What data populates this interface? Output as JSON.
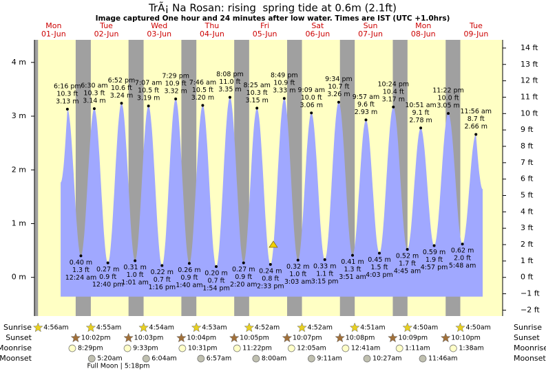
{
  "chart_data": {
    "type": "tide",
    "title": "TrÃ¡ Na Rosan: rising  spring tide at 0.6m (2.1ft)",
    "subtitle": "Image captured One hour and 24 minutes after low water. Times are IST (UTC +1.0hrs)",
    "ylim": [
      -0.72,
      4.42
    ],
    "yticks": [
      {
        "value": 0,
        "label": "0 m"
      },
      {
        "value": 1,
        "label": "1 m"
      },
      {
        "value": 2,
        "label": "2 m"
      },
      {
        "value": 3,
        "label": "3 m"
      },
      {
        "value": 4,
        "label": "4 m"
      }
    ],
    "y2lim": [
      -2.36,
      14.5
    ],
    "y2ticks": [
      {
        "value": -2,
        "label": "−2 ft"
      },
      {
        "value": -1,
        "label": "−1 ft"
      },
      {
        "value": 0,
        "label": "0 ft"
      },
      {
        "value": 1,
        "label": "1 ft"
      },
      {
        "value": 2,
        "label": "2 ft"
      },
      {
        "value": 3,
        "label": "3 ft"
      },
      {
        "value": 4,
        "label": "4 ft"
      },
      {
        "value": 5,
        "label": "5 ft"
      },
      {
        "value": 6,
        "label": "6 ft"
      },
      {
        "value": 7,
        "label": "7 ft"
      },
      {
        "value": 8,
        "label": "8 ft"
      },
      {
        "value": 9,
        "label": "9 ft"
      },
      {
        "value": 10,
        "label": "10 ft"
      },
      {
        "value": 11,
        "label": "11 ft"
      },
      {
        "value": 12,
        "label": "12 ft"
      },
      {
        "value": 13,
        "label": "13 ft"
      },
      {
        "value": 14,
        "label": "14 ft"
      }
    ],
    "color": "#a0a8ff",
    "row_labels": [
      "Sunrise",
      "Sunset",
      "Moonrise",
      "Moonset"
    ],
    "full_moon": "Full Moon | 5:18pm",
    "days": [
      {
        "name": "Mon",
        "date": "01-Jun",
        "sunrise": "4:56am",
        "sunset": "10:02pm",
        "moonrise": "8:29pm",
        "tides": [
          {
            "time": "6:16 pm",
            "ft": "10.3 ft",
            "value": 3.13,
            "value_label": "3.13 m"
          }
        ]
      },
      {
        "name": "Tue",
        "date": "02-Jun",
        "sunrise": "4:55am",
        "sunset": "10:03pm",
        "moonrise": "9:33pm",
        "moonset": "5:20am",
        "tides": [
          {
            "time": "12:24 am",
            "ft": "1.3 ft",
            "value": 0.4,
            "value_label": "0.40 m"
          },
          {
            "time": "6:30 am",
            "ft": "10.3 ft",
            "value": 3.14,
            "value_label": "3.14 m"
          },
          {
            "time": "12:40 pm",
            "ft": "0.9 ft",
            "value": 0.27,
            "value_label": "0.27 m"
          },
          {
            "time": "6:52 pm",
            "ft": "10.6 ft",
            "value": 3.24,
            "value_label": "3.24 m"
          }
        ]
      },
      {
        "name": "Wed",
        "date": "03-Jun",
        "sunrise": "4:54am",
        "sunset": "10:04pm",
        "moonrise": "10:31pm",
        "moonset": "6:04am",
        "tides": [
          {
            "time": "1:01 am",
            "ft": "1.0 ft",
            "value": 0.31,
            "value_label": "0.31 m"
          },
          {
            "time": "7:07 am",
            "ft": "10.5 ft",
            "value": 3.19,
            "value_label": "3.19 m"
          },
          {
            "time": "1:16 pm",
            "ft": "0.7 ft",
            "value": 0.22,
            "value_label": "0.22 m"
          },
          {
            "time": "7:29 pm",
            "ft": "10.9 ft",
            "value": 3.32,
            "value_label": "3.32 m"
          }
        ]
      },
      {
        "name": "Thu",
        "date": "04-Jun",
        "sunrise": "4:53am",
        "sunset": "10:05pm",
        "moonrise": "11:22pm",
        "moonset": "6:57am",
        "tides": [
          {
            "time": "1:40 am",
            "ft": "0.9 ft",
            "value": 0.26,
            "value_label": "0.26 m"
          },
          {
            "time": "7:46 am",
            "ft": "10.5 ft",
            "value": 3.2,
            "value_label": "3.20 m"
          },
          {
            "time": "1:54 pm",
            "ft": "0.7 ft",
            "value": 0.2,
            "value_label": "0.20 m"
          },
          {
            "time": "8:08 pm",
            "ft": "11.0 ft",
            "value": 3.35,
            "value_label": "3.35 m"
          }
        ]
      },
      {
        "name": "Fri",
        "date": "05-Jun",
        "sunrise": "4:52am",
        "sunset": "10:07pm",
        "moonset": "8:00am",
        "tides": [
          {
            "time": "2:20 am",
            "ft": "0.9 ft",
            "value": 0.27,
            "value_label": "0.27 m"
          },
          {
            "time": "8:25 am",
            "ft": "10.3 ft",
            "value": 3.15,
            "value_label": "3.15 m"
          },
          {
            "time": "2:33 pm",
            "ft": "0.8 ft",
            "value": 0.24,
            "value_label": "0.24 m"
          },
          {
            "time": "8:49 pm",
            "ft": "10.9 ft",
            "value": 3.33,
            "value_label": "3.33 m"
          }
        ]
      },
      {
        "name": "Sat",
        "date": "06-Jun",
        "sunrise": "4:52am",
        "sunset": "10:08pm",
        "moonrise": "12:05am",
        "moonset": "9:11am",
        "tides": [
          {
            "time": "3:03 am",
            "ft": "1.0 ft",
            "value": 0.32,
            "value_label": "0.32 m"
          },
          {
            "time": "9:09 am",
            "ft": "10.0 ft",
            "value": 3.06,
            "value_label": "3.06 m"
          },
          {
            "time": "3:15 pm",
            "ft": "1.1 ft",
            "value": 0.33,
            "value_label": "0.33 m"
          },
          {
            "time": "9:34 pm",
            "ft": "10.7 ft",
            "value": 3.26,
            "value_label": "3.26 m"
          }
        ]
      },
      {
        "name": "Sun",
        "date": "07-Jun",
        "sunrise": "4:51am",
        "sunset": "10:09pm",
        "moonrise": "12:41am",
        "moonset": "10:27am",
        "tides": [
          {
            "time": "3:51 am",
            "ft": "1.3 ft",
            "value": 0.41,
            "value_label": "0.41 m"
          },
          {
            "time": "9:57 am",
            "ft": "9.6 ft",
            "value": 2.93,
            "value_label": "2.93 m"
          },
          {
            "time": "4:03 pm",
            "ft": "1.5 ft",
            "value": 0.45,
            "value_label": "0.45 m"
          },
          {
            "time": "10:24 pm",
            "ft": "10.4 ft",
            "value": 3.17,
            "value_label": "3.17 m"
          }
        ]
      },
      {
        "name": "Mon",
        "date": "08-Jun",
        "sunrise": "4:50am",
        "sunset": "10:10pm",
        "moonrise": "1:11am",
        "moonset": "11:46am",
        "tides": [
          {
            "time": "4:45 am",
            "ft": "1.7 ft",
            "value": 0.52,
            "value_label": "0.52 m"
          },
          {
            "time": "10:51 am",
            "ft": "9.1 ft",
            "value": 2.78,
            "value_label": "2.78 m"
          },
          {
            "time": "4:57 pm",
            "ft": "1.9 ft",
            "value": 0.59,
            "value_label": "0.59 m"
          },
          {
            "time": "11:22 pm",
            "ft": "10.0 ft",
            "value": 3.05,
            "value_label": "3.05 m"
          }
        ]
      },
      {
        "name": "Tue",
        "date": "09-Jun",
        "sunrise": "4:50am",
        "moonrise": "1:38am",
        "tides": [
          {
            "time": "5:48 am",
            "ft": "2.0 ft",
            "value": 0.62,
            "value_label": "0.62 m"
          },
          {
            "time": "11:56 am",
            "ft": "8.7 ft",
            "value": 2.66,
            "value_label": "2.66 m"
          }
        ]
      }
    ]
  }
}
